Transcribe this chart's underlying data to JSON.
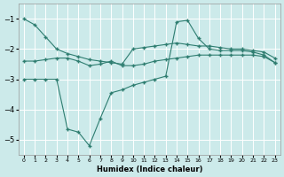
{
  "xlabel": "Humidex (Indice chaleur)",
  "background_color": "#cceaea",
  "grid_color": "#ffffff",
  "line_color": "#2e7d70",
  "x_values": [
    0,
    1,
    2,
    3,
    4,
    5,
    6,
    7,
    8,
    9,
    10,
    11,
    12,
    13,
    14,
    15,
    16,
    17,
    18,
    19,
    20,
    21,
    22,
    23
  ],
  "line1": [
    -1.0,
    -1.2,
    -1.6,
    -2.0,
    -2.15,
    -2.25,
    -2.35,
    -2.4,
    -2.45,
    -2.5,
    -2.0,
    -1.95,
    -1.9,
    -1.85,
    -1.8,
    -1.85,
    -1.9,
    -1.9,
    -1.95,
    -2.0,
    -2.0,
    -2.05,
    -2.1,
    -2.3
  ],
  "line2": [
    -2.4,
    -2.4,
    -2.35,
    -2.3,
    -2.3,
    -2.4,
    -2.55,
    -2.5,
    -2.4,
    -2.55,
    -2.55,
    -2.5,
    -2.4,
    -2.35,
    -2.3,
    -2.25,
    -2.2,
    -2.2,
    -2.2,
    -2.2,
    -2.2,
    -2.2,
    -2.25,
    -2.45
  ],
  "line3": [
    -3.0,
    -3.0,
    -3.0,
    -3.0,
    -4.65,
    -4.75,
    -5.2,
    -4.3,
    -3.45,
    -3.35,
    -3.2,
    -3.1,
    -3.0,
    -2.9,
    -1.1,
    -1.05,
    -1.65,
    -2.0,
    -2.05,
    -2.05,
    -2.05,
    -2.1,
    -2.2,
    -2.45
  ],
  "ylim": [
    -5.5,
    -0.5
  ],
  "xlim": [
    -0.5,
    23.5
  ],
  "yticks": [
    -5,
    -4,
    -3,
    -2,
    -1
  ],
  "xticks": [
    0,
    1,
    2,
    3,
    4,
    5,
    6,
    7,
    8,
    9,
    10,
    11,
    12,
    13,
    14,
    15,
    16,
    17,
    18,
    19,
    20,
    21,
    22,
    23
  ]
}
